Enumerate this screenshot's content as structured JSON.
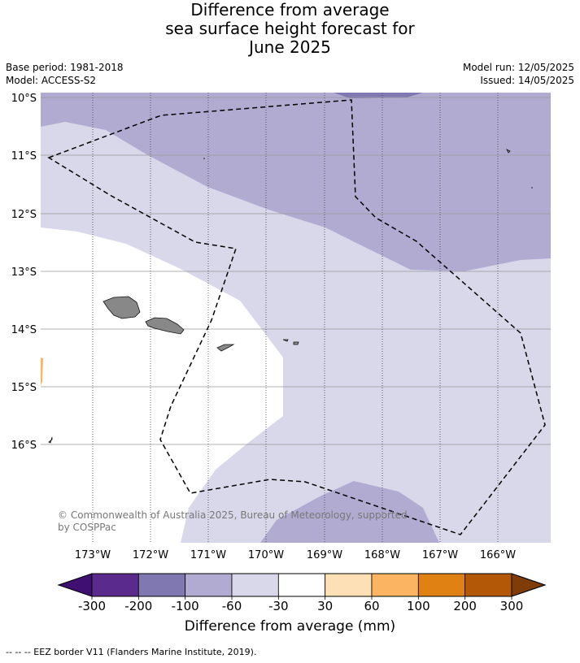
{
  "title": {
    "line1": "Difference from average",
    "line2": "sea surface height forecast for",
    "line3": "June 2025"
  },
  "meta": {
    "base_period": "Base period: 1981-2018",
    "model": "Model: ACCESS-S2",
    "model_run": "Model run: 12/05/2025",
    "issued": "Issued: 14/05/2025"
  },
  "map": {
    "lat_labels": [
      "10°S",
      "11°S",
      "12°S",
      "13°S",
      "14°S",
      "15°S",
      "16°S"
    ],
    "lon_labels": [
      "173°W",
      "172°W",
      "171°W",
      "170°W",
      "169°W",
      "168°W",
      "167°W",
      "166°W"
    ],
    "copyright_line1": "© Commonwealth of Australia 2025, Bureau of Meteorology, supported",
    "copyright_line2": "by COSPPac",
    "colors": {
      "ocean_-100_-60": "#b1abd2",
      "ocean_-60_-30": "#d8d8ea",
      "ocean_-30_30": "#ffffff",
      "ocean_-200_-100": "#8078b0",
      "land": "#888888"
    }
  },
  "colorbar": {
    "ticks": [
      "-300",
      "-200",
      "-100",
      "-60",
      "-30",
      "30",
      "60",
      "100",
      "200",
      "300"
    ],
    "colors": [
      "#3f0f71",
      "#5b2a8d",
      "#8078b0",
      "#b1abd2",
      "#d8d8ea",
      "#ffffff",
      "#fde0b5",
      "#fbb462",
      "#e08113",
      "#b35806",
      "#7f3b08"
    ],
    "label": "Difference from average (mm)"
  },
  "footer": "--  --  -- EEZ border V11 (Flanders Marine Institute, 2019)."
}
